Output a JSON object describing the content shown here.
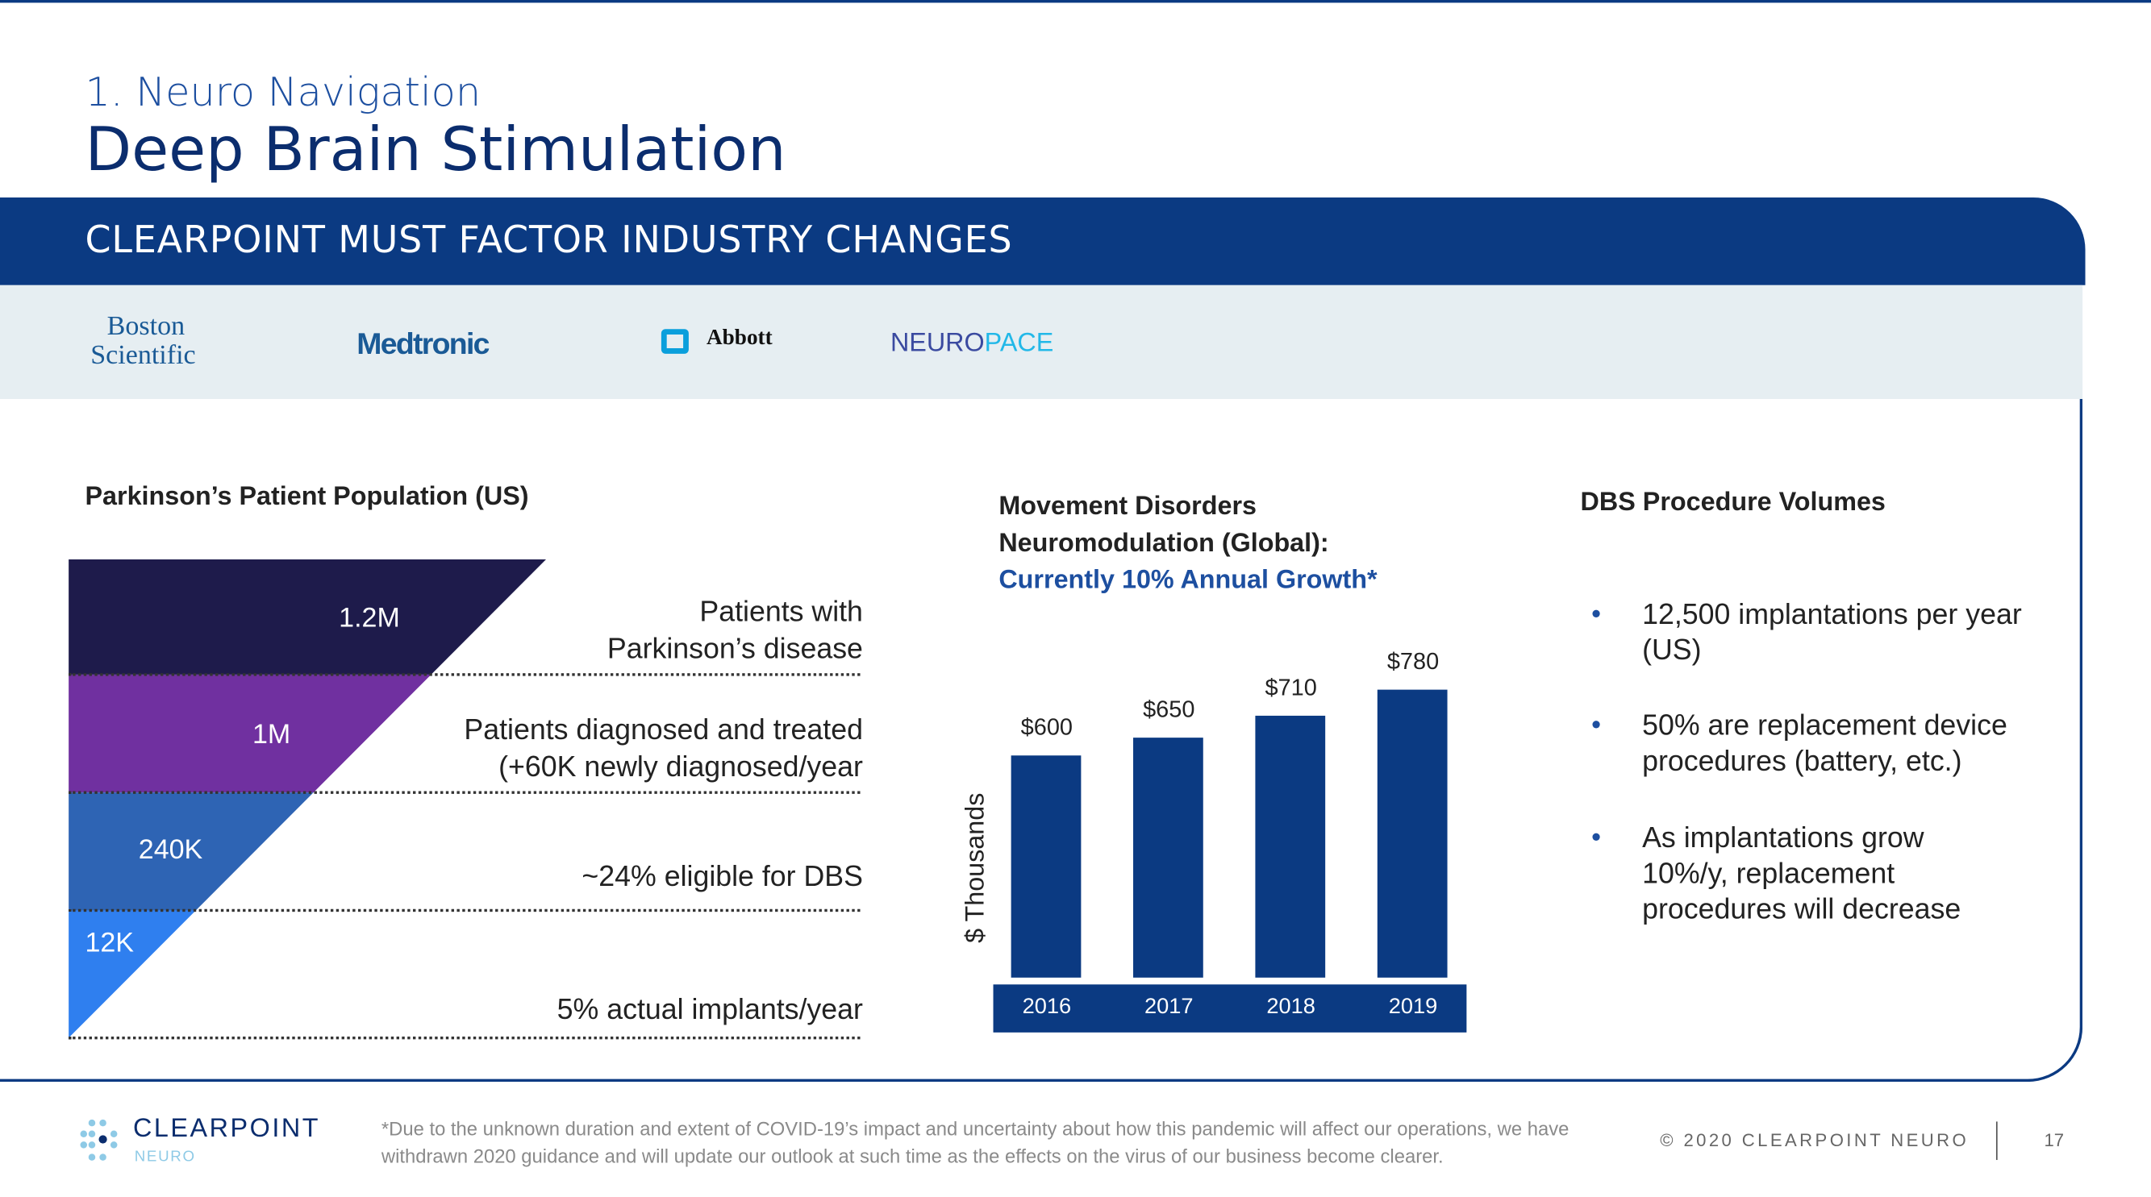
{
  "header": {
    "subtitle": "1. Neuro Navigation",
    "title": "Deep Brain Stimulation",
    "banner": "CLEARPOINT MUST FACTOR INDUSTRY CHANGES"
  },
  "logos": {
    "boston_line1": "Boston",
    "boston_line2": "Scientific",
    "medtronic": "Medtronic",
    "abbott": "Abbott",
    "neuropace_a": "NEURO",
    "neuropace_b": "PACE"
  },
  "parkinsons": {
    "title": "Parkinson’s Patient Population (US)",
    "levels": [
      {
        "value": "1.2M",
        "line1": "Patients with",
        "line2": "Parkinson’s disease",
        "color": "#1e1b4b"
      },
      {
        "value": "1M",
        "line1": "Patients diagnosed and treated",
        "line2": "(+60K newly diagnosed/year",
        "color": "#7030a0"
      },
      {
        "value": "240K",
        "line1": "~24% eligible for DBS",
        "color": "#2e64b4"
      },
      {
        "value": "12K",
        "line1": "5% actual implants/year",
        "color": "#2f7fef"
      }
    ]
  },
  "chart_data": {
    "type": "bar",
    "title": "Movement Disorders Neuromodulation (Global):",
    "title_line1": "Movement Disorders",
    "title_line2": "Neuromodulation (Global):",
    "subtitle": "Currently 10% Annual Growth*",
    "ylabel": "$ Thousands",
    "xlabel": "",
    "categories": [
      "2016",
      "2017",
      "2018",
      "2019"
    ],
    "values": [
      600,
      650,
      710,
      780
    ],
    "labels": [
      "$600",
      "$650",
      "$710",
      "$780"
    ],
    "ylim": [
      0,
      780
    ],
    "color": "#0b3a82"
  },
  "dbs": {
    "title": "DBS Procedure Volumes",
    "bullet": "•",
    "items": [
      "12,500 implantations per year (US)",
      "50% are replacement device procedures (battery, etc.)",
      "As implantations grow 10%/y, replacement procedures will decrease"
    ]
  },
  "footer": {
    "logo_main": "CLEARPOINT",
    "logo_sub": "NEURO",
    "note": "*Due to the unknown duration and extent of COVID-19’s impact and uncertainty about how this pandemic will affect our operations, we have withdrawn 2020 guidance and will update our outlook at such time as the effects on the virus of our business become clearer.",
    "copyright": "© 2020 CLEARPOINT NEURO",
    "page": "17"
  }
}
